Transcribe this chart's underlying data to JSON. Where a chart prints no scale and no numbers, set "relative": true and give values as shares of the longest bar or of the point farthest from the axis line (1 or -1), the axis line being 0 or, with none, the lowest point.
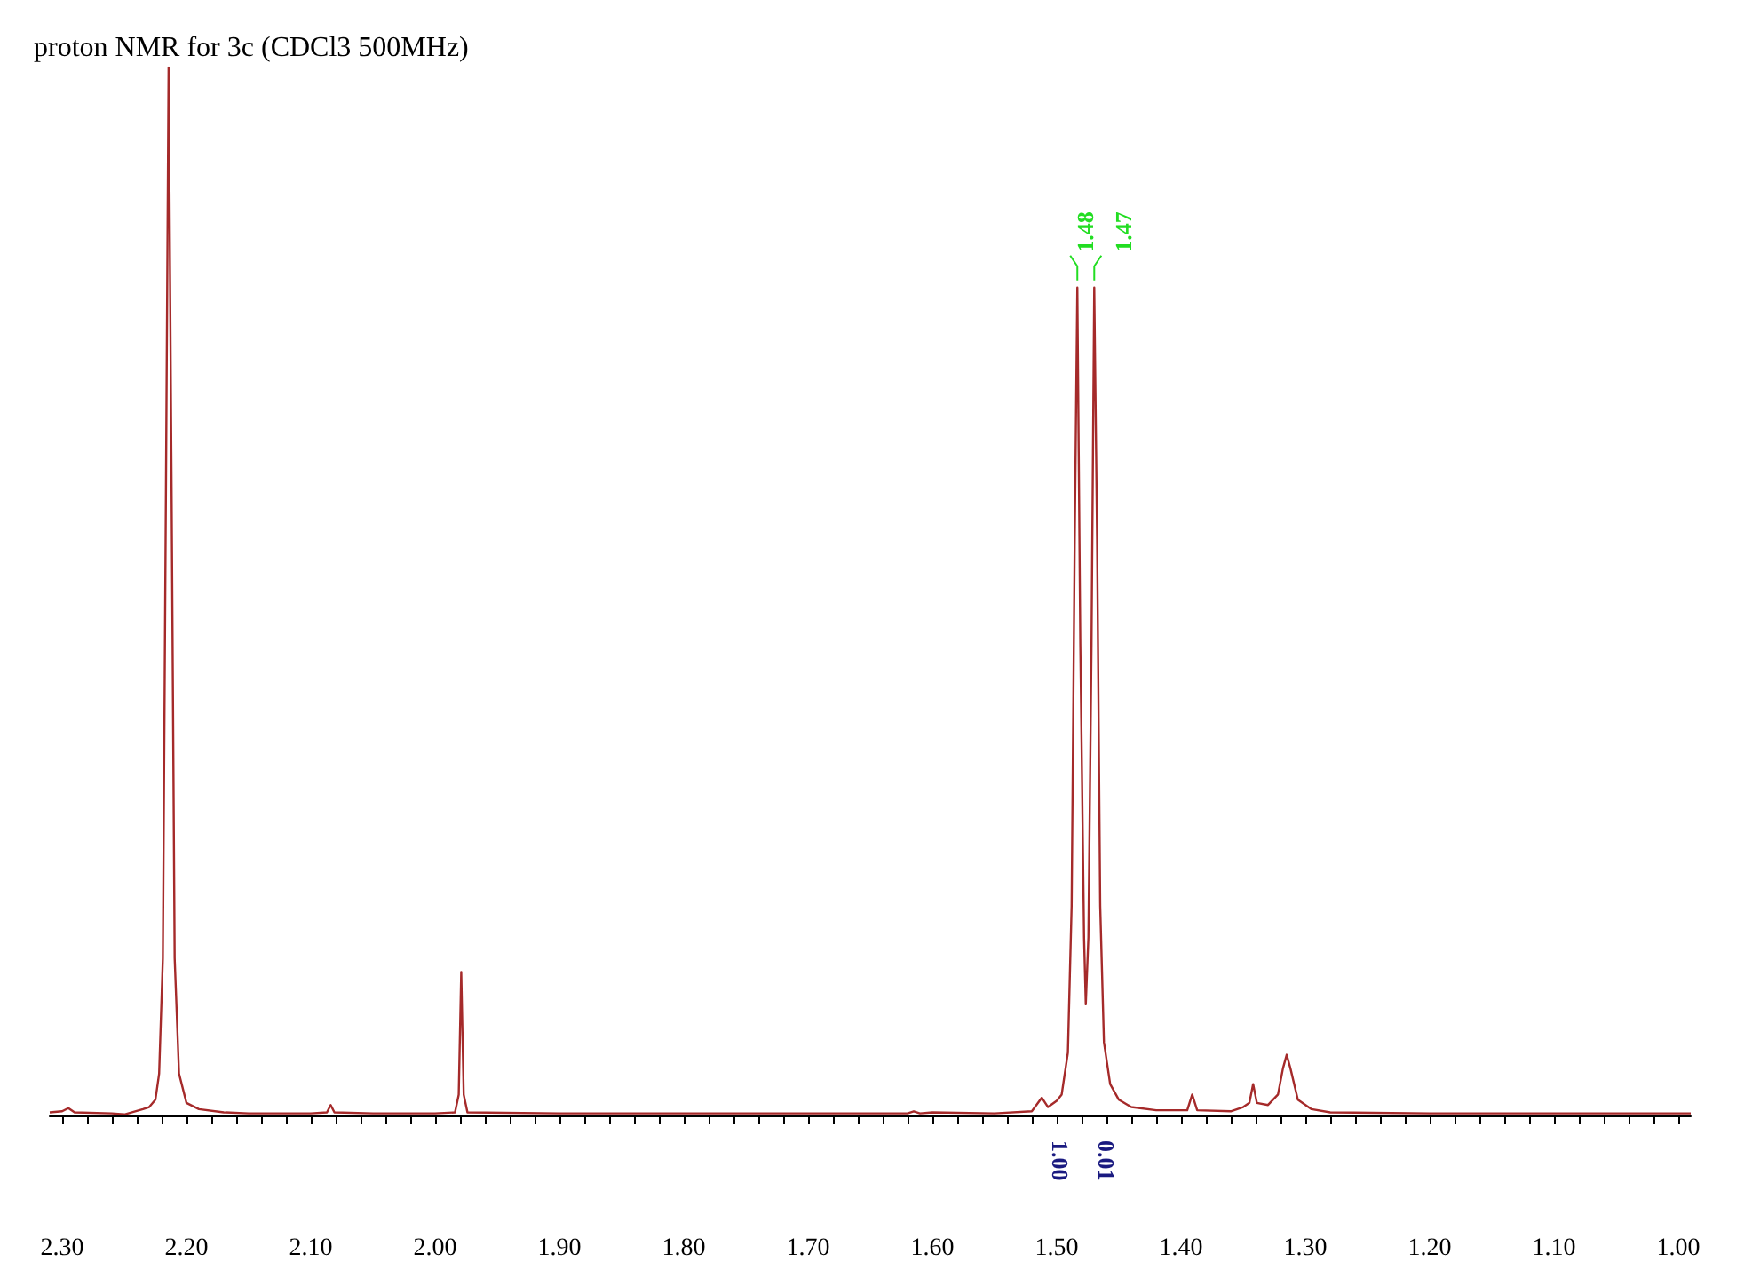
{
  "chart_data": {
    "type": "line",
    "title": "proton NMR for 3c (CDCl3 500MHz)",
    "relative": true,
    "marker": "none",
    "grid": false,
    "x": [
      2.31,
      2.3,
      2.295,
      2.29,
      2.26,
      2.25,
      2.235,
      2.23,
      2.225,
      2.222,
      2.219,
      2.2165,
      2.2144,
      2.212,
      2.2095,
      2.206,
      2.2,
      2.19,
      2.17,
      2.15,
      2.1,
      2.087,
      2.084,
      2.081,
      2.05,
      2.0,
      1.984,
      1.981,
      1.979,
      1.977,
      1.974,
      1.9,
      1.8,
      1.7,
      1.62,
      1.615,
      1.61,
      1.6,
      1.55,
      1.52,
      1.512,
      1.507,
      1.5,
      1.496,
      1.491,
      1.488,
      1.4855,
      1.4834,
      1.481,
      1.478,
      1.4766,
      1.4745,
      1.472,
      1.4698,
      1.4675,
      1.465,
      1.462,
      1.457,
      1.45,
      1.44,
      1.42,
      1.395,
      1.391,
      1.387,
      1.36,
      1.35,
      1.345,
      1.342,
      1.339,
      1.33,
      1.322,
      1.318,
      1.315,
      1.312,
      1.306,
      1.295,
      1.28,
      1.2,
      1.1,
      1.0,
      0.99
    ],
    "series": [
      {
        "color": "#a52a2a",
        "values": [
          0.003,
          0.004,
          0.007,
          0.003,
          0.002,
          0.001,
          0.006,
          0.008,
          0.015,
          0.04,
          0.15,
          0.6,
          1,
          0.6,
          0.15,
          0.04,
          0.012,
          0.006,
          0.003,
          0.002,
          0.002,
          0.003,
          0.01,
          0.003,
          0.002,
          0.002,
          0.003,
          0.02,
          0.137,
          0.02,
          0.003,
          0.002,
          0.002,
          0.002,
          0.002,
          0.004,
          0.002,
          0.003,
          0.002,
          0.004,
          0.017,
          0.008,
          0.014,
          0.02,
          0.06,
          0.2,
          0.55,
          0.79,
          0.45,
          0.17,
          0.106,
          0.17,
          0.45,
          0.79,
          0.55,
          0.2,
          0.07,
          0.03,
          0.015,
          0.008,
          0.005,
          0.005,
          0.02,
          0.005,
          0.004,
          0.008,
          0.012,
          0.03,
          0.012,
          0.01,
          0.02,
          0.045,
          0.058,
          0.045,
          0.015,
          0.006,
          0.003,
          0.002,
          0.002,
          0.002,
          0.002
        ]
      }
    ],
    "xlim": [
      2.31,
      0.99
    ],
    "xticks": [
      {
        "value": 2.3,
        "label": "2.30"
      },
      {
        "value": 2.28,
        "label": null
      },
      {
        "value": 2.26,
        "label": null
      },
      {
        "value": 2.24,
        "label": null
      },
      {
        "value": 2.22,
        "label": null
      },
      {
        "value": 2.2,
        "label": "2.20"
      },
      {
        "value": 2.18,
        "label": null
      },
      {
        "value": 2.16,
        "label": null
      },
      {
        "value": 2.14,
        "label": null
      },
      {
        "value": 2.12,
        "label": null
      },
      {
        "value": 2.1,
        "label": "2.10"
      },
      {
        "value": 2.08,
        "label": null
      },
      {
        "value": 2.06,
        "label": null
      },
      {
        "value": 2.04,
        "label": null
      },
      {
        "value": 2.02,
        "label": null
      },
      {
        "value": 2.0,
        "label": "2.00"
      },
      {
        "value": 1.98,
        "label": null
      },
      {
        "value": 1.96,
        "label": null
      },
      {
        "value": 1.94,
        "label": null
      },
      {
        "value": 1.92,
        "label": null
      },
      {
        "value": 1.9,
        "label": "1.90"
      },
      {
        "value": 1.88,
        "label": null
      },
      {
        "value": 1.86,
        "label": null
      },
      {
        "value": 1.84,
        "label": null
      },
      {
        "value": 1.82,
        "label": null
      },
      {
        "value": 1.8,
        "label": "1.80"
      },
      {
        "value": 1.78,
        "label": null
      },
      {
        "value": 1.76,
        "label": null
      },
      {
        "value": 1.74,
        "label": null
      },
      {
        "value": 1.72,
        "label": null
      },
      {
        "value": 1.7,
        "label": "1.70"
      },
      {
        "value": 1.68,
        "label": null
      },
      {
        "value": 1.66,
        "label": null
      },
      {
        "value": 1.64,
        "label": null
      },
      {
        "value": 1.62,
        "label": null
      },
      {
        "value": 1.6,
        "label": "1.60"
      },
      {
        "value": 1.58,
        "label": null
      },
      {
        "value": 1.56,
        "label": null
      },
      {
        "value": 1.54,
        "label": null
      },
      {
        "value": 1.52,
        "label": null
      },
      {
        "value": 1.5,
        "label": "1.50"
      },
      {
        "value": 1.48,
        "label": null
      },
      {
        "value": 1.46,
        "label": null
      },
      {
        "value": 1.44,
        "label": null
      },
      {
        "value": 1.42,
        "label": null
      },
      {
        "value": 1.4,
        "label": "1.40"
      },
      {
        "value": 1.38,
        "label": null
      },
      {
        "value": 1.36,
        "label": null
      },
      {
        "value": 1.34,
        "label": null
      },
      {
        "value": 1.32,
        "label": null
      },
      {
        "value": 1.3,
        "label": "1.30"
      },
      {
        "value": 1.28,
        "label": null
      },
      {
        "value": 1.26,
        "label": null
      },
      {
        "value": 1.24,
        "label": null
      },
      {
        "value": 1.22,
        "label": null
      },
      {
        "value": 1.2,
        "label": "1.20"
      },
      {
        "value": 1.18,
        "label": null
      },
      {
        "value": 1.16,
        "label": null
      },
      {
        "value": 1.14,
        "label": null
      },
      {
        "value": 1.12,
        "label": null
      },
      {
        "value": 1.1,
        "label": "1.10"
      },
      {
        "value": 1.08,
        "label": null
      },
      {
        "value": 1.06,
        "label": null
      },
      {
        "value": 1.04,
        "label": null
      },
      {
        "value": 1.02,
        "label": null
      },
      {
        "value": 1.0,
        "label": "1.00"
      }
    ],
    "annotations": [
      {
        "text": "1.48",
        "x": 1.4834,
        "y": 0.79
      },
      {
        "text": "1.47",
        "x": 1.4698,
        "y": 0.79
      },
      "1.00",
      "0.01"
    ]
  }
}
